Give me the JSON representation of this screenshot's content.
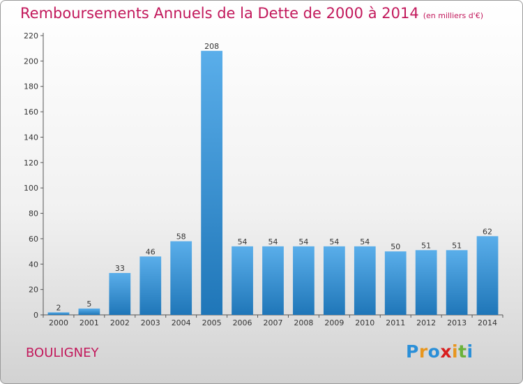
{
  "header": {
    "title": "Remboursements Annuels de la Dette de 2000 à 2014",
    "subtitle": "(en milliers d'€)"
  },
  "commune": "BOULIGNEY",
  "brand": {
    "letters": [
      "P",
      "r",
      "o",
      "x",
      "i",
      "t",
      "i"
    ],
    "colors": [
      "#2a8fd8",
      "#e8961e",
      "#2a8fd8",
      "#d81e1e",
      "#e8961e",
      "#6ab23a",
      "#2a8fd8"
    ]
  },
  "chart_data": {
    "type": "bar",
    "title": "Remboursements Annuels de la Dette de 2000 à 2014",
    "xlabel": "",
    "ylabel": "",
    "categories": [
      "2000",
      "2001",
      "2002",
      "2003",
      "2004",
      "2005",
      "2006",
      "2007",
      "2008",
      "2009",
      "2010",
      "2011",
      "2012",
      "2013",
      "2014"
    ],
    "values": [
      2,
      5,
      33,
      46,
      58,
      208,
      54,
      54,
      54,
      54,
      54,
      50,
      51,
      51,
      62
    ],
    "ylim": [
      0,
      220
    ],
    "yticks": [
      0,
      20,
      40,
      60,
      80,
      100,
      120,
      140,
      160,
      180,
      200,
      220
    ],
    "grid": false,
    "colors": {
      "bar_light": "#5aaeea",
      "bar_dark": "#1f76b8",
      "axis": "#555555"
    }
  }
}
